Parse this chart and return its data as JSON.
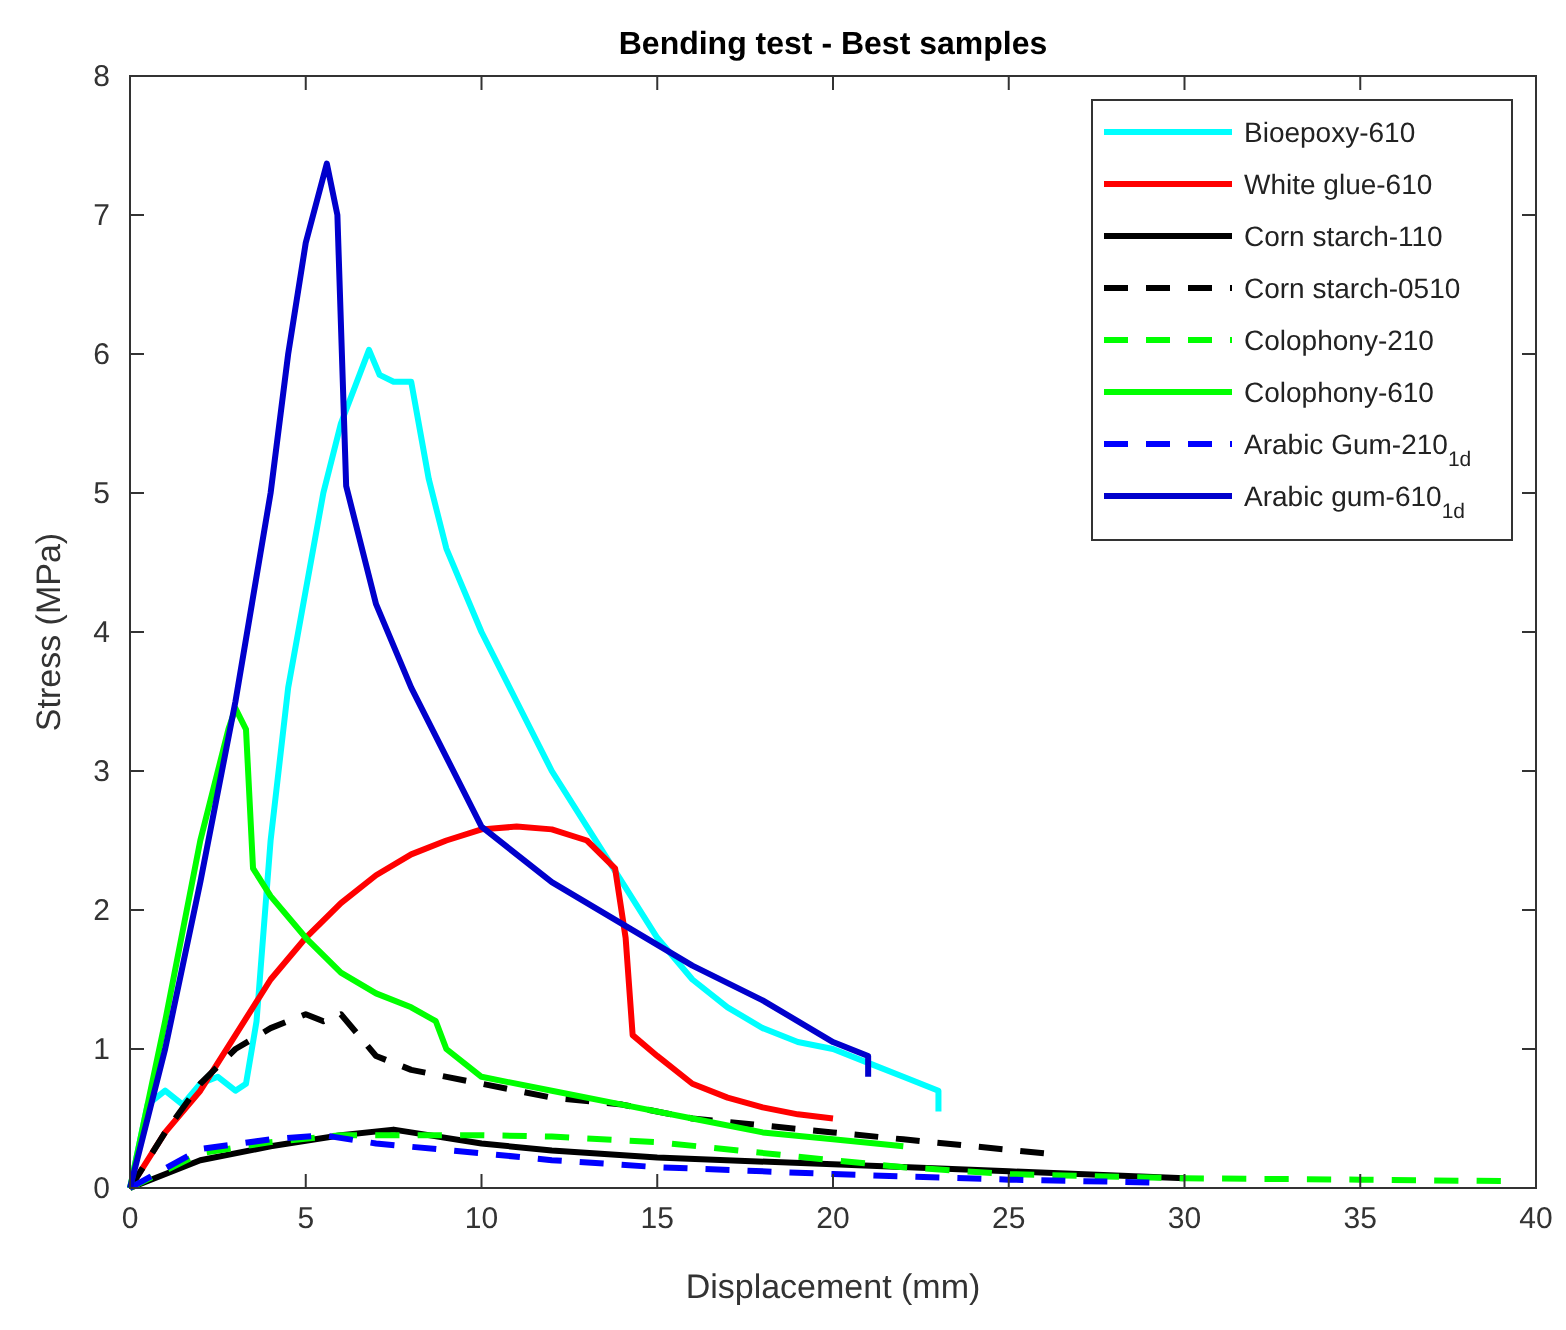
{
  "chart_data": {
    "type": "line",
    "title": "Bending test - Best samples",
    "xlabel": "Displacement (mm)",
    "ylabel": "Stress (MPa)",
    "xlim": [
      0,
      40
    ],
    "xticks": [
      0,
      5,
      10,
      15,
      20,
      25,
      30,
      35,
      40
    ],
    "ylim": [
      0,
      8
    ],
    "yticks": [
      0,
      1,
      2,
      3,
      4,
      5,
      6,
      7,
      8
    ],
    "grid": false,
    "legend": "top right",
    "series": [
      {
        "name": "Bioepoxy-610",
        "color": "#00ffff",
        "line_style": "solid",
        "x": [
          0,
          0.5,
          1,
          1.5,
          2,
          2.5,
          3,
          3.3,
          3.6,
          4,
          4.5,
          5,
          5.5,
          6,
          6.8,
          7.1,
          7.5,
          8,
          8.5,
          9,
          10,
          11,
          12,
          13,
          14,
          15,
          16,
          17,
          18,
          19,
          20,
          21,
          22,
          23,
          23
        ],
        "values": [
          0,
          0.6,
          0.7,
          0.6,
          0.75,
          0.8,
          0.7,
          0.75,
          1.2,
          2.5,
          3.6,
          4.3,
          5.0,
          5.5,
          6.03,
          5.85,
          5.8,
          5.8,
          5.1,
          4.6,
          4.0,
          3.5,
          3.0,
          2.6,
          2.2,
          1.8,
          1.5,
          1.3,
          1.15,
          1.05,
          1.0,
          0.9,
          0.8,
          0.7,
          0.55
        ]
      },
      {
        "name": "White glue-610",
        "color": "#ff0000",
        "line_style": "solid",
        "x": [
          0,
          1,
          2,
          3,
          4,
          5,
          6,
          7,
          8,
          9,
          10,
          11,
          12,
          13,
          13.8,
          14.1,
          14.3,
          15,
          16,
          17,
          18,
          19,
          20
        ],
        "values": [
          0,
          0.4,
          0.7,
          1.1,
          1.5,
          1.8,
          2.05,
          2.25,
          2.4,
          2.5,
          2.58,
          2.6,
          2.58,
          2.5,
          2.3,
          1.8,
          1.1,
          0.95,
          0.75,
          0.65,
          0.58,
          0.53,
          0.5
        ]
      },
      {
        "name": "Corn starch-110",
        "color": "#000000",
        "line_style": "solid",
        "x": [
          0,
          2,
          4,
          6,
          7.5,
          8,
          10,
          12,
          15,
          20,
          25,
          30
        ],
        "values": [
          0,
          0.2,
          0.3,
          0.38,
          0.42,
          0.4,
          0.32,
          0.27,
          0.22,
          0.17,
          0.12,
          0.07
        ]
      },
      {
        "name": "Corn starch-0510",
        "color": "#000000",
        "line_style": "dashed",
        "x": [
          0,
          1,
          2,
          3,
          4,
          5,
          5.5,
          6,
          7,
          8,
          10,
          12,
          14,
          16,
          18,
          20,
          22,
          24,
          26
        ],
        "values": [
          0,
          0.4,
          0.75,
          1.0,
          1.15,
          1.25,
          1.2,
          1.25,
          0.95,
          0.85,
          0.75,
          0.65,
          0.6,
          0.5,
          0.45,
          0.4,
          0.35,
          0.3,
          0.25
        ]
      },
      {
        "name": "Colophony-210",
        "color": "#00ff00",
        "line_style": "dashed",
        "x": [
          0,
          2,
          4,
          6,
          8,
          10,
          12,
          15,
          20,
          22,
          25,
          30,
          35,
          39
        ],
        "values": [
          0,
          0.25,
          0.33,
          0.38,
          0.38,
          0.38,
          0.37,
          0.33,
          0.2,
          0.15,
          0.1,
          0.07,
          0.06,
          0.05
        ]
      },
      {
        "name": "Colophony-610",
        "color": "#00ff00",
        "line_style": "solid",
        "x": [
          0,
          1,
          2,
          2.8,
          3,
          3.3,
          3.5,
          4,
          5,
          6,
          7,
          8,
          8.7,
          9,
          10,
          12,
          14,
          16,
          18,
          20,
          22
        ],
        "values": [
          0,
          1.2,
          2.5,
          3.3,
          3.45,
          3.3,
          2.3,
          2.1,
          1.8,
          1.55,
          1.4,
          1.3,
          1.2,
          1.0,
          0.8,
          0.7,
          0.6,
          0.5,
          0.4,
          0.35,
          0.3
        ]
      },
      {
        "name": "Arabic Gum-210$_{1d}$",
        "color": "#0000ff",
        "line_style": "dashed",
        "x": [
          0,
          2,
          4,
          5.5,
          7,
          10,
          12,
          15,
          20,
          25,
          29
        ],
        "values": [
          0,
          0.28,
          0.35,
          0.38,
          0.32,
          0.25,
          0.2,
          0.15,
          0.1,
          0.06,
          0.04
        ]
      },
      {
        "name": "Arabic gum-610$_{1d}$",
        "color": "#0000cc",
        "line_style": "solid",
        "x": [
          0,
          1,
          2,
          3,
          4,
          4.5,
          5,
          5.6,
          5.9,
          6.15,
          7,
          8,
          9,
          10,
          12,
          14,
          16,
          18,
          20,
          21,
          21
        ],
        "values": [
          0,
          1.0,
          2.2,
          3.5,
          5.0,
          6.0,
          6.8,
          7.37,
          7.0,
          5.05,
          4.2,
          3.6,
          3.1,
          2.6,
          2.2,
          1.9,
          1.6,
          1.35,
          1.05,
          0.95,
          0.8
        ]
      }
    ]
  }
}
